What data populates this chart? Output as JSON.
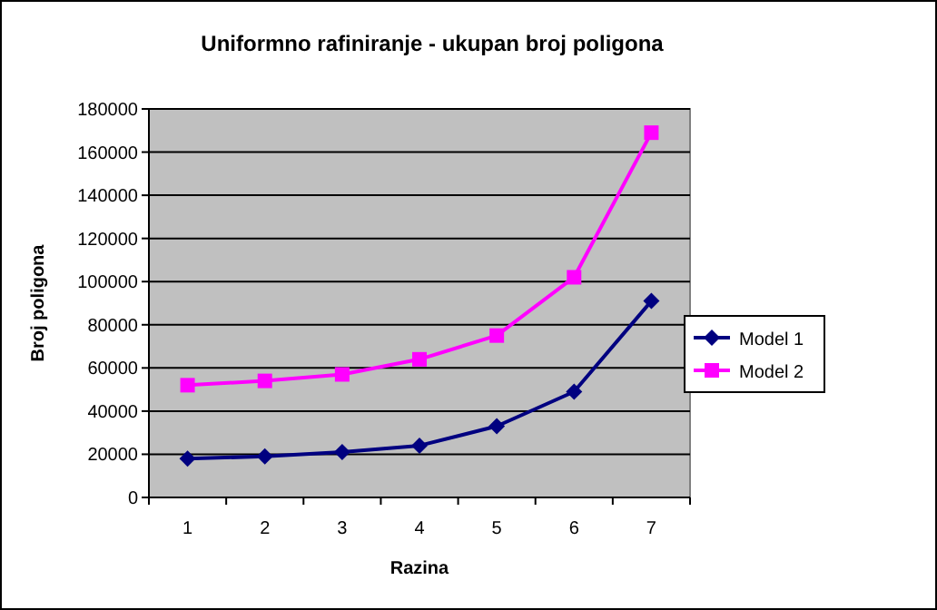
{
  "chart_data": {
    "type": "line",
    "title": "Uniformno rafiniranje - ukupan broj poligona",
    "xlabel": "Razina",
    "ylabel": "Broj poligona",
    "categories": [
      "1",
      "2",
      "3",
      "4",
      "5",
      "6",
      "7"
    ],
    "series": [
      {
        "name": "Model 1",
        "color": "#000080",
        "marker": "diamond",
        "values": [
          18000,
          19000,
          21000,
          24000,
          33000,
          49000,
          91000
        ]
      },
      {
        "name": "Model 2",
        "color": "#ff00ff",
        "marker": "square",
        "values": [
          52000,
          54000,
          57000,
          64000,
          75000,
          102000,
          169000
        ]
      }
    ],
    "ylim": [
      0,
      180000
    ],
    "yticks": [
      0,
      20000,
      40000,
      60000,
      80000,
      100000,
      120000,
      140000,
      160000,
      180000
    ],
    "grid": "y",
    "legend": "right"
  }
}
